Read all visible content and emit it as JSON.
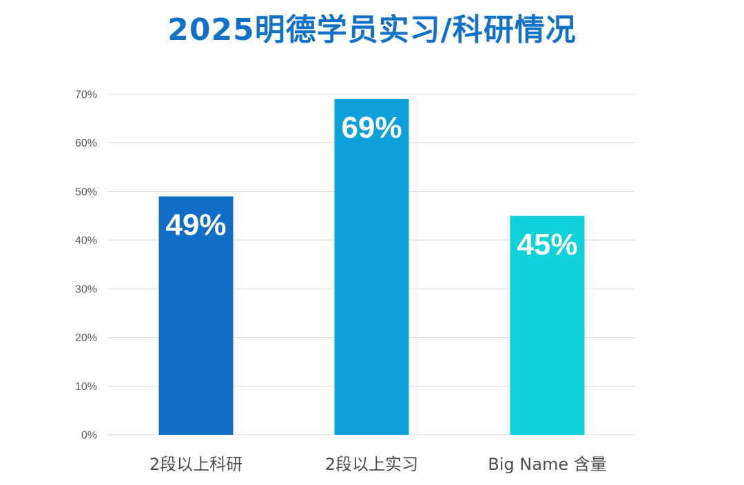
{
  "title": "2025明德学员实习/科研情况",
  "colors": {
    "title": "#1170c8",
    "bars": [
      "#116ec6",
      "#0da0da",
      "#0fd1da"
    ],
    "grid": "#d9d9d9",
    "axis_text": "#595959",
    "category_text": "#4d4d4d",
    "value_label": "#ffffff"
  },
  "chart_data": {
    "type": "bar",
    "title": "2025明德学员实习/科研情况",
    "categories": [
      "2段以上科研",
      "2段以上实习",
      "Big Name 含量"
    ],
    "values": [
      49,
      69,
      45
    ],
    "value_labels": [
      "49%",
      "69%",
      "45%"
    ],
    "ylim": [
      0,
      70
    ],
    "yticks": [
      0,
      10,
      20,
      30,
      40,
      50,
      60,
      70
    ],
    "ytick_labels": [
      "0%",
      "10%",
      "20%",
      "30%",
      "40%",
      "50%",
      "60%",
      "70%"
    ],
    "xlabel": "",
    "ylabel": "",
    "grid": true,
    "legend": "none"
  }
}
